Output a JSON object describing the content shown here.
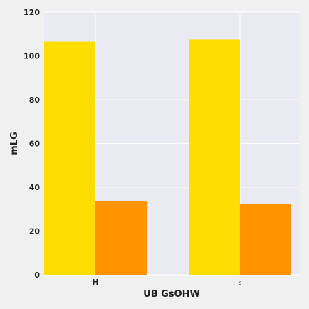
{
  "chart_data": {
    "type": "bar",
    "title": "",
    "xlabel": "UB GsOHW",
    "ylabel": "mLG",
    "categories": [
      "H",
      "c"
    ],
    "series": [
      {
        "values": [
          106.5,
          107.5
        ],
        "color": "#ffdd00"
      },
      {
        "values": [
          33.5,
          32.5
        ],
        "color": "#ff9400"
      }
    ],
    "ylim": [
      0,
      120
    ],
    "yticks": [
      0,
      20,
      40,
      60,
      80,
      100,
      120
    ],
    "grid": true,
    "colors": {
      "plot_background": "#eaeaf2",
      "page_background": "#f0f0f0",
      "grid": "#ffffff"
    }
  }
}
